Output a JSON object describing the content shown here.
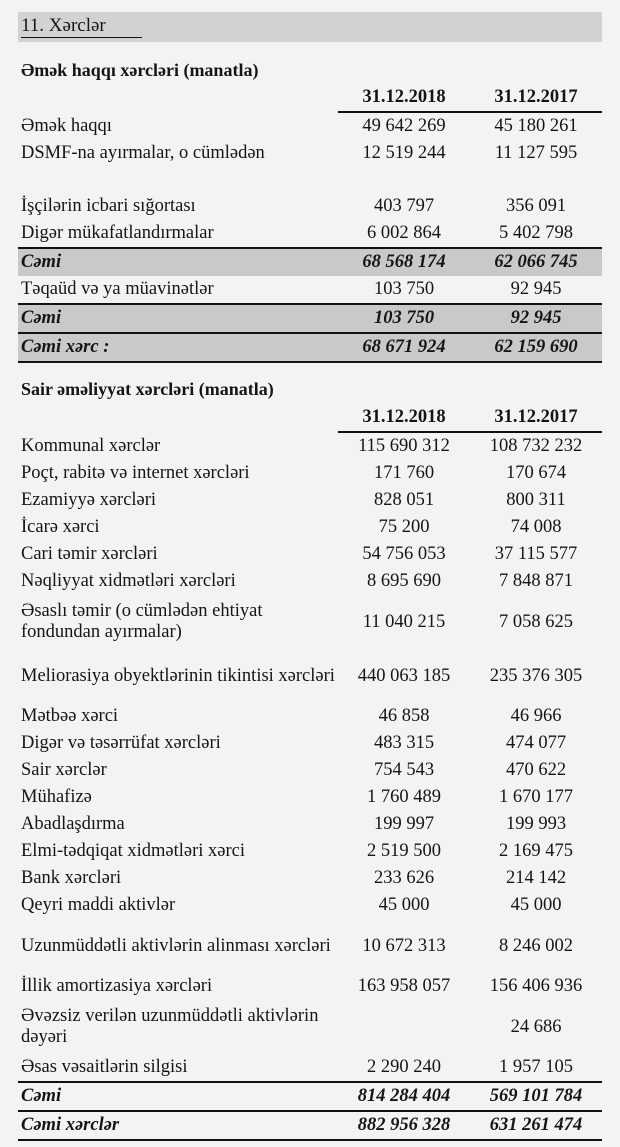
{
  "title": "11. Xərclər",
  "salary": {
    "heading": "Əmək haqqı xərcləri (manatla)",
    "columns": [
      "31.12.2018",
      "31.12.2017"
    ],
    "rows": [
      {
        "label": "Əmək haqqı",
        "v2018": "49 642 269",
        "v2017": "45 180 261"
      },
      {
        "label": "DSMF-na ayırmalar, o cümlədən",
        "v2018": "12 519 244",
        "v2017": "11 127 595"
      },
      {
        "label": "İşçilərin icbari sığortası",
        "v2018": "403 797",
        "v2017": "356 091"
      },
      {
        "label": "Digər mükafatlandırmalar",
        "v2018": "6 002 864",
        "v2017": "5 402 798"
      },
      {
        "label": "Cəmi",
        "v2018": "68 568 174",
        "v2017": "62 066 745"
      },
      {
        "label": "Təqaüd və ya müavinətlər",
        "v2018": "103 750",
        "v2017": "92 945"
      },
      {
        "label": "Cəmi",
        "v2018": "103 750",
        "v2017": "92 945"
      },
      {
        "label": "Cəmi xərc :",
        "v2018": "68 671 924",
        "v2017": "62 159 690"
      }
    ]
  },
  "other": {
    "heading": "Sair əməliyyat xərcləri (manatla)",
    "columns": [
      "31.12.2018",
      "31.12.2017"
    ],
    "rows": [
      {
        "label": "Kommunal xərclər",
        "v2018": "115 690 312",
        "v2017": "108 732 232"
      },
      {
        "label": "Poçt, rabitə və internet xərcləri",
        "v2018": "171 760",
        "v2017": "170 674"
      },
      {
        "label": "Ezamiyyə xərcləri",
        "v2018": "828 051",
        "v2017": "800 311"
      },
      {
        "label": "İcarə xərci",
        "v2018": "75 200",
        "v2017": "74 008"
      },
      {
        "label": "Cari təmir xərcləri",
        "v2018": "54 756 053",
        "v2017": "37 115 577"
      },
      {
        "label": "Nəqliyyat xidmətləri xərcləri",
        "v2018": "8 695 690",
        "v2017": "7 848 871"
      },
      {
        "label": "Əsaslı təmir (o cümlədən ehtiyat fondundan ayırmalar)",
        "v2018": "11 040 215",
        "v2017": "7 058 625"
      },
      {
        "label": "Meliorasiya obyektlərinin tikintisi xərcləri",
        "v2018": "440 063 185",
        "v2017": "235 376 305"
      },
      {
        "label": "Mətbəə xərci",
        "v2018": "46 858",
        "v2017": "46 966"
      },
      {
        "label": "Digər və təsərrüfat xərcləri",
        "v2018": "483 315",
        "v2017": "474 077"
      },
      {
        "label": "Sair xərclər",
        "v2018": "754 543",
        "v2017": "470 622"
      },
      {
        "label": "Mühafizə",
        "v2018": "1 760 489",
        "v2017": "1 670 177"
      },
      {
        "label": "Abadlaşdırma",
        "v2018": "199 997",
        "v2017": "199 993"
      },
      {
        "label": "Elmi-tədqiqat xidmətləri  xərci",
        "v2018": "2 519 500",
        "v2017": "2 169 475"
      },
      {
        "label": "Bank xərcləri",
        "v2018": "233 626",
        "v2017": "214 142"
      },
      {
        "label": "Qeyri maddi aktivlər",
        "v2018": "45 000",
        "v2017": "45 000"
      },
      {
        "label": "Uzunmüddətli aktivlərin alinması xərcləri",
        "v2018": "10 672 313",
        "v2017": "8 246 002"
      },
      {
        "label": "İllik amortizasiya xərcləri",
        "v2018": "163 958 057",
        "v2017": "156 406 936"
      },
      {
        "label": "Əvəzsiz verilən uzunmüddətli aktivlərin dəyəri",
        "v2018": "",
        "v2017": "24 686"
      },
      {
        "label": "Əsas vəsaitlərin silgisi",
        "v2018": "2 290 240",
        "v2017": "1 957 105"
      },
      {
        "label": "Cəmi",
        "v2018": "814 284 404",
        "v2017": "569 101 784"
      },
      {
        "label": "Cəmi xərclər",
        "v2018": "882 956 328",
        "v2017": "631 261 474"
      }
    ]
  }
}
